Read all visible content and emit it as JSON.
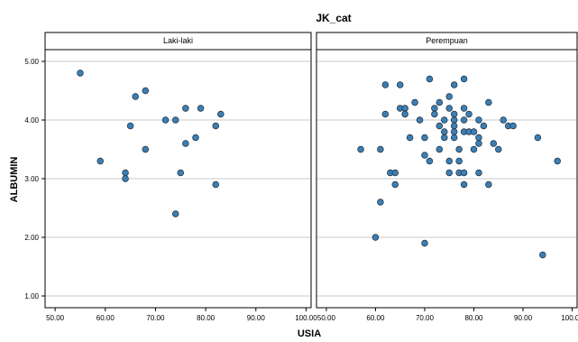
{
  "chart_data": {
    "type": "scatter",
    "title": "JK_cat",
    "xlabel": "USIA",
    "ylabel": "ALBUMIN",
    "xlim": [
      48,
      101
    ],
    "ylim": [
      0.8,
      5.2
    ],
    "x_ticks": [
      "50.00",
      "60.00",
      "70.00",
      "80.00",
      "90.00",
      "100.00"
    ],
    "x_tick_values": [
      50,
      60,
      70,
      80,
      90,
      100
    ],
    "y_ticks": [
      "1.00",
      "2.00",
      "3.00",
      "4.00",
      "5.00"
    ],
    "y_tick_values": [
      1,
      2,
      3,
      4,
      5
    ],
    "grid": "horizontal",
    "marker_color": "#3b7fb4",
    "panels": [
      {
        "name": "Laki-laki",
        "points": [
          {
            "x": 55,
            "y": 4.8
          },
          {
            "x": 59,
            "y": 3.3
          },
          {
            "x": 64,
            "y": 3.1
          },
          {
            "x": 64,
            "y": 3.0
          },
          {
            "x": 65,
            "y": 3.9
          },
          {
            "x": 66,
            "y": 4.4
          },
          {
            "x": 68,
            "y": 4.5
          },
          {
            "x": 68,
            "y": 3.5
          },
          {
            "x": 72,
            "y": 4.0
          },
          {
            "x": 74,
            "y": 4.0
          },
          {
            "x": 74,
            "y": 2.4
          },
          {
            "x": 75,
            "y": 3.1
          },
          {
            "x": 76,
            "y": 4.2
          },
          {
            "x": 76,
            "y": 3.6
          },
          {
            "x": 78,
            "y": 3.7
          },
          {
            "x": 79,
            "y": 4.2
          },
          {
            "x": 82,
            "y": 3.9
          },
          {
            "x": 82,
            "y": 2.9
          },
          {
            "x": 83,
            "y": 4.1
          }
        ]
      },
      {
        "name": "Perempuan",
        "points": [
          {
            "x": 57,
            "y": 3.5
          },
          {
            "x": 60,
            "y": 2.0
          },
          {
            "x": 61,
            "y": 3.5
          },
          {
            "x": 61,
            "y": 2.6
          },
          {
            "x": 62,
            "y": 4.6
          },
          {
            "x": 62,
            "y": 4.1
          },
          {
            "x": 63,
            "y": 3.1
          },
          {
            "x": 64,
            "y": 3.1
          },
          {
            "x": 64,
            "y": 2.9
          },
          {
            "x": 65,
            "y": 4.6
          },
          {
            "x": 65,
            "y": 4.2
          },
          {
            "x": 66,
            "y": 4.2
          },
          {
            "x": 66,
            "y": 4.1
          },
          {
            "x": 67,
            "y": 3.7
          },
          {
            "x": 68,
            "y": 4.3
          },
          {
            "x": 69,
            "y": 4.0
          },
          {
            "x": 70,
            "y": 3.7
          },
          {
            "x": 70,
            "y": 3.4
          },
          {
            "x": 70,
            "y": 1.9
          },
          {
            "x": 71,
            "y": 4.7
          },
          {
            "x": 71,
            "y": 3.3
          },
          {
            "x": 72,
            "y": 4.2
          },
          {
            "x": 72,
            "y": 4.1
          },
          {
            "x": 73,
            "y": 4.3
          },
          {
            "x": 73,
            "y": 3.9
          },
          {
            "x": 73,
            "y": 3.5
          },
          {
            "x": 74,
            "y": 4.0
          },
          {
            "x": 74,
            "y": 3.8
          },
          {
            "x": 74,
            "y": 3.7
          },
          {
            "x": 75,
            "y": 4.4
          },
          {
            "x": 75,
            "y": 4.2
          },
          {
            "x": 75,
            "y": 3.3
          },
          {
            "x": 75,
            "y": 3.1
          },
          {
            "x": 76,
            "y": 4.6
          },
          {
            "x": 76,
            "y": 4.1
          },
          {
            "x": 76,
            "y": 4.0
          },
          {
            "x": 76,
            "y": 3.9
          },
          {
            "x": 76,
            "y": 3.8
          },
          {
            "x": 76,
            "y": 3.7
          },
          {
            "x": 77,
            "y": 3.5
          },
          {
            "x": 77,
            "y": 3.3
          },
          {
            "x": 77,
            "y": 3.1
          },
          {
            "x": 78,
            "y": 4.7
          },
          {
            "x": 78,
            "y": 4.2
          },
          {
            "x": 78,
            "y": 4.0
          },
          {
            "x": 78,
            "y": 3.8
          },
          {
            "x": 78,
            "y": 3.1
          },
          {
            "x": 78,
            "y": 2.9
          },
          {
            "x": 79,
            "y": 4.1
          },
          {
            "x": 79,
            "y": 3.8
          },
          {
            "x": 80,
            "y": 3.8
          },
          {
            "x": 80,
            "y": 3.5
          },
          {
            "x": 81,
            "y": 4.0
          },
          {
            "x": 81,
            "y": 3.7
          },
          {
            "x": 81,
            "y": 3.6
          },
          {
            "x": 81,
            "y": 3.1
          },
          {
            "x": 82,
            "y": 3.9
          },
          {
            "x": 83,
            "y": 4.3
          },
          {
            "x": 83,
            "y": 2.9
          },
          {
            "x": 84,
            "y": 3.6
          },
          {
            "x": 85,
            "y": 3.5
          },
          {
            "x": 86,
            "y": 4.0
          },
          {
            "x": 87,
            "y": 3.9
          },
          {
            "x": 88,
            "y": 3.9
          },
          {
            "x": 93,
            "y": 3.7
          },
          {
            "x": 94,
            "y": 1.7
          },
          {
            "x": 97,
            "y": 3.3
          }
        ]
      }
    ]
  }
}
